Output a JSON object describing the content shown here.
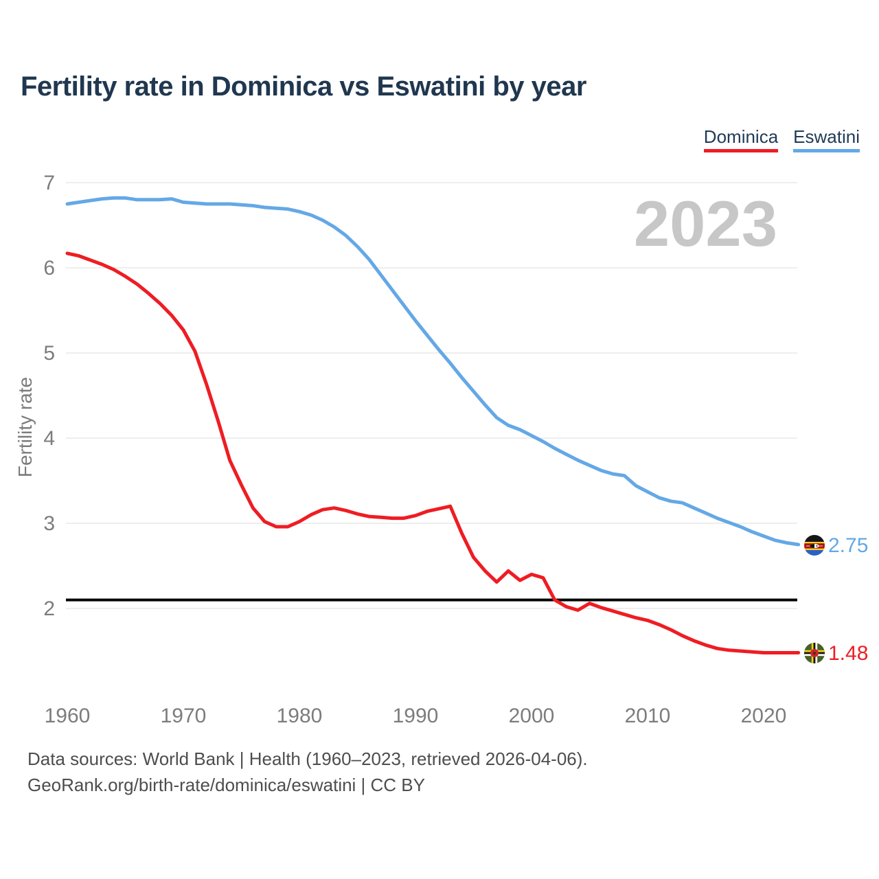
{
  "header": {
    "title": "Fertility rate in Dominica vs Eswatini by year"
  },
  "legend": {
    "items": [
      {
        "label": "Dominica",
        "color": "#ee1d23"
      },
      {
        "label": "Eswatini",
        "color": "#64a8e6"
      }
    ]
  },
  "watermark": "2023",
  "chart_data": {
    "type": "line",
    "title": "Fertility rate in Dominica vs Eswatini by year",
    "xlabel": "",
    "ylabel": "Fertility rate",
    "xlim": [
      1960,
      2023
    ],
    "ylim": [
      1.3,
      7.1
    ],
    "grid": "horizontal",
    "legend_position": "top-right",
    "x_ticks": [
      1960,
      1970,
      1980,
      1990,
      2000,
      2010,
      2020
    ],
    "y_ticks": [
      7,
      6,
      5,
      4,
      3,
      2
    ],
    "reference_line": {
      "value": 2.1,
      "color": "#000000"
    },
    "x": [
      1960,
      1961,
      1962,
      1963,
      1964,
      1965,
      1966,
      1967,
      1968,
      1969,
      1970,
      1971,
      1972,
      1973,
      1974,
      1975,
      1976,
      1977,
      1978,
      1979,
      1980,
      1981,
      1982,
      1983,
      1984,
      1985,
      1986,
      1987,
      1988,
      1989,
      1990,
      1991,
      1992,
      1993,
      1994,
      1995,
      1996,
      1997,
      1998,
      1999,
      2000,
      2001,
      2002,
      2003,
      2004,
      2005,
      2006,
      2007,
      2008,
      2009,
      2010,
      2011,
      2012,
      2013,
      2014,
      2015,
      2016,
      2017,
      2018,
      2019,
      2020,
      2021,
      2022,
      2023
    ],
    "series": [
      {
        "name": "Eswatini",
        "color": "#64a8e6",
        "end_label": "2.75",
        "end_value": 2.75,
        "flag_icon": "eswatini-flag-icon",
        "values": [
          6.75,
          6.77,
          6.79,
          6.81,
          6.82,
          6.82,
          6.8,
          6.8,
          6.8,
          6.81,
          6.77,
          6.76,
          6.75,
          6.75,
          6.75,
          6.74,
          6.73,
          6.71,
          6.7,
          6.69,
          6.66,
          6.62,
          6.56,
          6.48,
          6.38,
          6.25,
          6.1,
          5.92,
          5.74,
          5.56,
          5.38,
          5.21,
          5.04,
          4.88,
          4.71,
          4.55,
          4.39,
          4.24,
          4.15,
          4.1,
          4.03,
          3.96,
          3.88,
          3.81,
          3.74,
          3.68,
          3.62,
          3.58,
          3.56,
          3.44,
          3.37,
          3.3,
          3.26,
          3.24,
          3.18,
          3.12,
          3.06,
          3.01,
          2.96,
          2.9,
          2.85,
          2.8,
          2.77,
          2.75
        ]
      },
      {
        "name": "Dominica",
        "color": "#ee1d23",
        "end_label": "1.48",
        "end_value": 1.48,
        "flag_icon": "dominica-flag-icon",
        "values": [
          6.17,
          6.14,
          6.09,
          6.04,
          5.98,
          5.9,
          5.81,
          5.7,
          5.58,
          5.44,
          5.27,
          5.02,
          4.63,
          4.2,
          3.74,
          3.45,
          3.18,
          3.02,
          2.96,
          2.96,
          3.02,
          3.1,
          3.16,
          3.18,
          3.15,
          3.11,
          3.08,
          3.07,
          3.06,
          3.06,
          3.09,
          3.14,
          3.17,
          3.2,
          2.88,
          2.6,
          2.44,
          2.31,
          2.44,
          2.33,
          2.4,
          2.36,
          2.1,
          2.02,
          1.98,
          2.06,
          2.01,
          1.97,
          1.93,
          1.89,
          1.86,
          1.81,
          1.75,
          1.68,
          1.62,
          1.57,
          1.53,
          1.51,
          1.5,
          1.49,
          1.48,
          1.48,
          1.48,
          1.48
        ]
      }
    ]
  },
  "footer": {
    "line1": "Data sources: World Bank | Health (1960–2023, retrieved 2026-04-06).",
    "line2": "GeoRank.org/birth-rate/dominica/eswatini | CC BY"
  }
}
